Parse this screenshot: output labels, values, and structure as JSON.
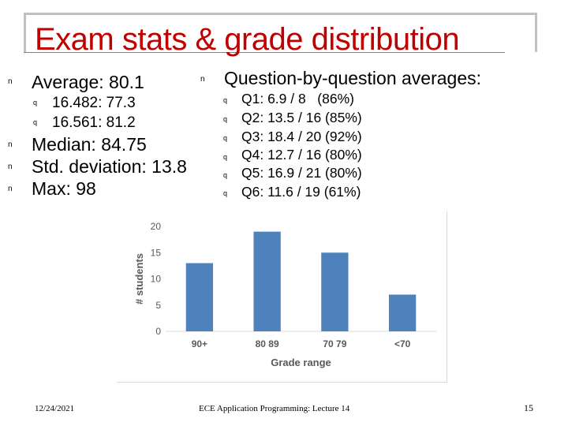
{
  "slide": {
    "title": "Exam stats & grade distribution",
    "left_list": {
      "average": "Average: 80.1",
      "sub": [
        "16.482: 77.3",
        "16.561: 81.2"
      ],
      "median": "Median: 84.75",
      "std": "Std. deviation: 13.8",
      "max": "Max: 98"
    },
    "right_list": {
      "heading": "Question-by-question averages:",
      "items": [
        "Q1: 6.9 / 8   (86%)",
        "Q2: 13.5 / 16 (85%)",
        "Q3: 18.4 / 20 (92%)",
        "Q4: 12.7 / 16 (80%)",
        "Q5: 16.9 / 21 (80%)",
        "Q6: 11.6 / 19 (61%)"
      ]
    },
    "bullet_glyph": "n",
    "sub_bullet_glyph": "q",
    "footer": {
      "date": "12/24/2021",
      "center": "ECE Application Programming: Lecture 14",
      "page": "15"
    },
    "colors": {
      "title": "#c00000",
      "bar": "#4f81bd"
    }
  },
  "chart_data": {
    "type": "bar",
    "categories": [
      "90+",
      "80 89",
      "70 79",
      "<70"
    ],
    "values": [
      13,
      19,
      15,
      7
    ],
    "xlabel": "Grade range",
    "ylabel": "# students",
    "ylim": [
      0,
      20
    ],
    "yticks": [
      0,
      5,
      10,
      15,
      20
    ],
    "grid": false,
    "legend": "none"
  }
}
